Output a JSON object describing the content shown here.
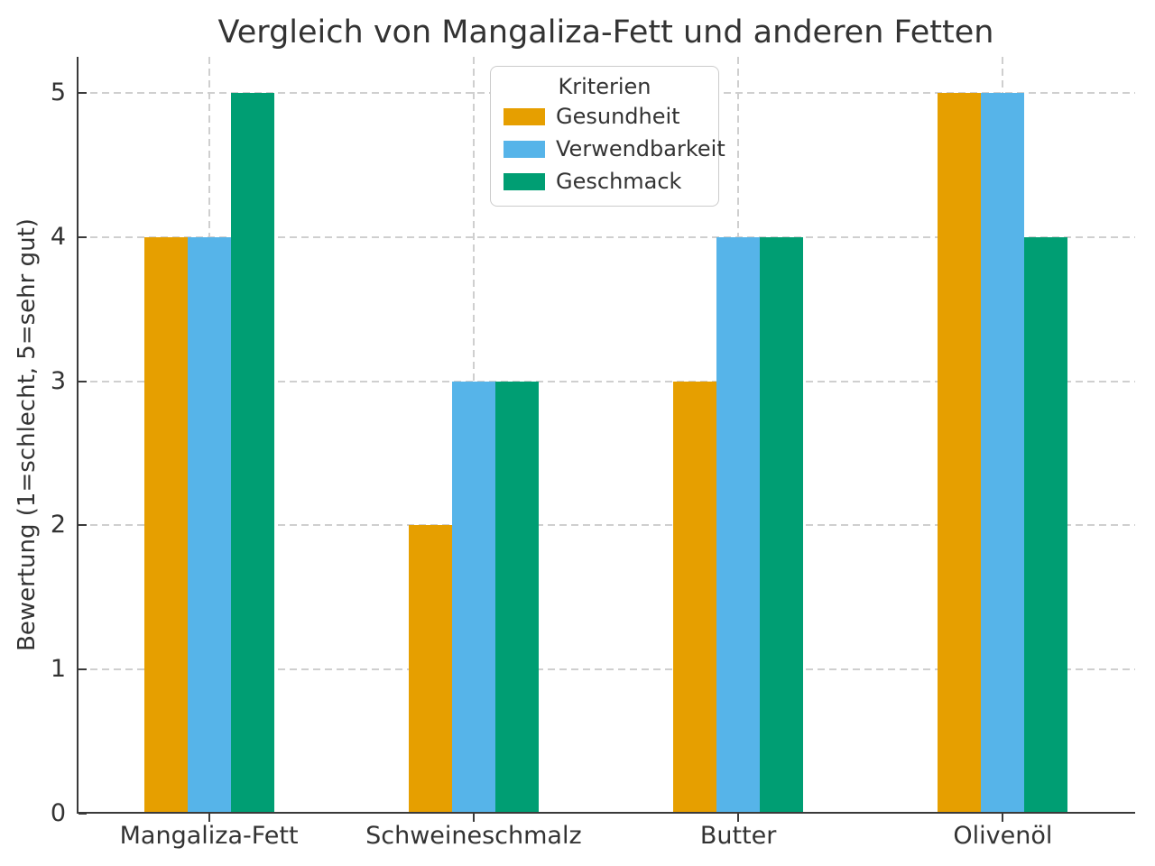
{
  "chart_data": {
    "type": "bar",
    "title": "Vergleich von Mangaliza-Fett und anderen Fetten",
    "xlabel": "",
    "ylabel": "Bewertung (1=schlecht, 5=sehr gut)",
    "categories": [
      "Mangaliza-Fett",
      "Schweineschmalz",
      "Butter",
      "Olivenöl"
    ],
    "series": [
      {
        "name": "Gesundheit",
        "color": "#E69F00",
        "values": [
          4,
          2,
          3,
          5
        ]
      },
      {
        "name": "Verwendbarkeit",
        "color": "#56B4E9",
        "values": [
          4,
          3,
          4,
          5
        ]
      },
      {
        "name": "Geschmack",
        "color": "#009E73",
        "values": [
          5,
          3,
          4,
          4
        ]
      }
    ],
    "legend": {
      "title": "Kriterien",
      "position": "upper center"
    },
    "ylim": [
      0,
      5.25
    ],
    "yticks": [
      0,
      1,
      2,
      3,
      4,
      5
    ],
    "grid": {
      "horizontal": true,
      "vertical": true,
      "style": "dashed",
      "color": "#cccccc"
    }
  },
  "style": {
    "background": "#ffffff",
    "spine_color": "#3a3a3a",
    "text_color": "#333333",
    "grid_color": "#cccccc"
  }
}
